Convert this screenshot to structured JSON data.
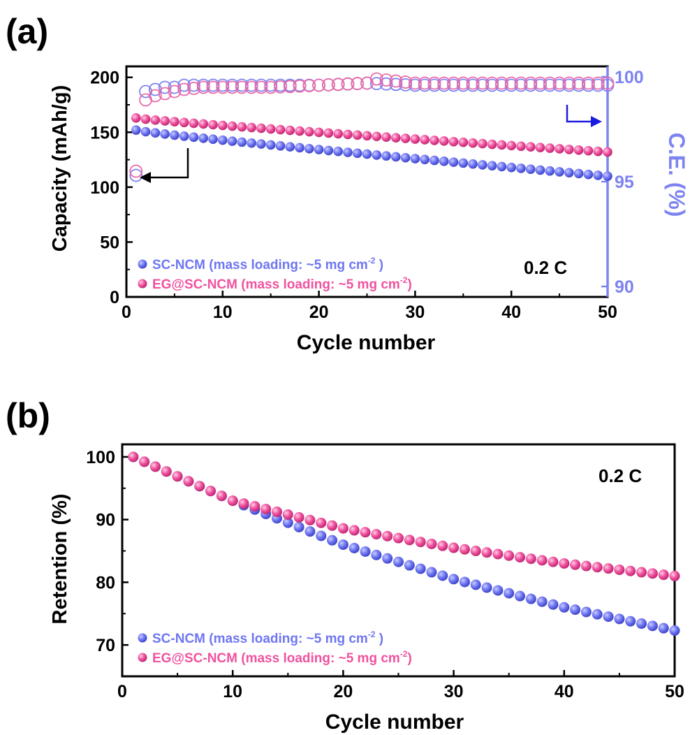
{
  "panel_a": {
    "panel_label": "(a)",
    "rate_label": "0.2 C",
    "xlabel": "Cycle number",
    "ylabel_left": "Capacity (mAh/g)",
    "ylabel_right": "C.E. (%)",
    "legend": [
      {
        "prefix": "SC-NCM (mass loading: ~5 mg cm",
        "sup": "-2",
        "suffix": " )",
        "color": "#6f76f2"
      },
      {
        "prefix": "EG@SC-NCM (mass loading: ~5 mg cm",
        "sup": "-2",
        "suffix": ")",
        "color": "#f0529f"
      }
    ],
    "x_ticks": [
      0,
      10,
      20,
      30,
      40,
      50
    ],
    "y_left_ticks": [
      0,
      50,
      100,
      150,
      200
    ],
    "y_right_ticks": [
      90,
      95,
      100
    ]
  },
  "panel_b": {
    "panel_label": "(b)",
    "rate_label": "0.2 C",
    "xlabel": "Cycle number",
    "ylabel": "Retention (%)",
    "legend": [
      {
        "prefix": "SC-NCM (mass loading: ~5 mg cm",
        "sup": "-2",
        "suffix": " )",
        "color": "#6f76f2"
      },
      {
        "prefix": "EG@SC-NCM (mass loading: ~5 mg cm",
        "sup": "-2",
        "suffix": ")",
        "color": "#f0529f"
      }
    ],
    "x_ticks": [
      0,
      10,
      20,
      30,
      40,
      50
    ],
    "y_ticks": [
      70,
      80,
      90,
      100
    ]
  },
  "chart_data": [
    {
      "type": "scatter",
      "xlim": [
        0,
        50
      ],
      "ylim": [
        0,
        210
      ],
      "y2lim": [
        89.5,
        100.5
      ],
      "series": [
        {
          "name": "SC-NCM",
          "axis": "capacity",
          "color": "#6f76f2",
          "marker": "filled",
          "x_range": [
            1,
            50
          ],
          "start": 152,
          "end": 110
        },
        {
          "name": "EG@SC-NCM",
          "axis": "capacity",
          "color": "#f0529f",
          "marker": "filled",
          "x_range": [
            1,
            50
          ],
          "start": 163,
          "end": 132
        },
        {
          "name": "SC-NCM",
          "axis": "C.E.",
          "color": "#7d83f0",
          "marker": "open",
          "x": [
            1,
            2,
            3,
            4,
            5,
            6,
            8,
            10,
            15,
            20,
            25,
            30,
            35,
            40,
            45,
            50
          ],
          "y": [
            95.3,
            99.3,
            99.4,
            99.5,
            99.5,
            99.6,
            99.6,
            99.6,
            99.6,
            99.6,
            99.7,
            99.6,
            99.6,
            99.6,
            99.6,
            99.6
          ]
        },
        {
          "name": "EG@SC-NCM",
          "axis": "C.E.",
          "color": "#e86aa8",
          "marker": "open",
          "x": [
            1,
            2,
            3,
            4,
            5,
            6,
            8,
            10,
            15,
            20,
            25,
            26,
            30,
            35,
            40,
            45,
            50
          ],
          "y": [
            95.5,
            98.9,
            99.1,
            99.2,
            99.3,
            99.4,
            99.5,
            99.5,
            99.5,
            99.6,
            99.7,
            99.9,
            99.7,
            99.7,
            99.7,
            99.7,
            99.7
          ]
        }
      ]
    },
    {
      "type": "scatter",
      "xlim": [
        0,
        50
      ],
      "ylim": [
        65,
        102
      ],
      "series": [
        {
          "name": "SC-NCM",
          "color": "#6f76f2",
          "x_range": [
            1,
            50
          ],
          "points": [
            [
              1,
              100
            ],
            [
              10,
              93
            ],
            [
              20,
              86
            ],
            [
              30,
              80.5
            ],
            [
              40,
              76
            ],
            [
              50,
              72.3
            ]
          ]
        },
        {
          "name": "EG@SC-NCM",
          "color": "#f0529f",
          "x_range": [
            1,
            50
          ],
          "points": [
            [
              1,
              100
            ],
            [
              10,
              93
            ],
            [
              20,
              88.6
            ],
            [
              30,
              85.5
            ],
            [
              40,
              83
            ],
            [
              50,
              81
            ]
          ]
        }
      ]
    }
  ]
}
